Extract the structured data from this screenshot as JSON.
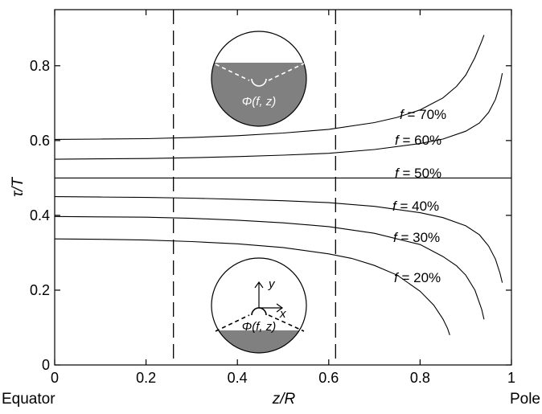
{
  "chart_data": {
    "type": "line",
    "xlabel": "z/R",
    "ylabel": "τ/T",
    "xlim": [
      0,
      1
    ],
    "ylim": [
      0,
      0.95
    ],
    "x_ticks": [
      "0",
      "0.2",
      "0.4",
      "0.6",
      "0.8",
      "1"
    ],
    "y_ticks": [
      "0",
      "0.2",
      "0.4",
      "0.6",
      "0.8"
    ],
    "x_end_labels": {
      "left": "Equator",
      "right": "Pole"
    },
    "vertical_lines": [
      0.26,
      0.615
    ],
    "series": [
      {
        "name": "f = 70%",
        "x": [
          0,
          0.1,
          0.2,
          0.3,
          0.4,
          0.5,
          0.6,
          0.7,
          0.75,
          0.8,
          0.85,
          0.88,
          0.9,
          0.92,
          0.935,
          0.94
        ],
        "y": [
          0.603,
          0.604,
          0.605,
          0.608,
          0.613,
          0.62,
          0.63,
          0.648,
          0.662,
          0.682,
          0.714,
          0.745,
          0.775,
          0.822,
          0.866,
          0.882
        ]
      },
      {
        "name": "f = 60%",
        "x": [
          0,
          0.1,
          0.2,
          0.3,
          0.4,
          0.5,
          0.6,
          0.7,
          0.8,
          0.85,
          0.9,
          0.93,
          0.95,
          0.965,
          0.975,
          0.98
        ],
        "y": [
          0.55,
          0.551,
          0.552,
          0.554,
          0.557,
          0.561,
          0.566,
          0.576,
          0.592,
          0.604,
          0.625,
          0.647,
          0.675,
          0.71,
          0.75,
          0.78
        ]
      },
      {
        "name": "f = 50%",
        "x": [
          0,
          1
        ],
        "y": [
          0.5,
          0.5
        ]
      },
      {
        "name": "f = 40%",
        "x": [
          0,
          0.1,
          0.2,
          0.3,
          0.4,
          0.5,
          0.6,
          0.7,
          0.8,
          0.85,
          0.9,
          0.93,
          0.95,
          0.965,
          0.975,
          0.98
        ],
        "y": [
          0.45,
          0.449,
          0.448,
          0.446,
          0.443,
          0.439,
          0.434,
          0.424,
          0.407,
          0.394,
          0.372,
          0.348,
          0.318,
          0.283,
          0.245,
          0.22
        ]
      },
      {
        "name": "f = 30%",
        "x": [
          0,
          0.1,
          0.2,
          0.3,
          0.4,
          0.5,
          0.6,
          0.7,
          0.8,
          0.85,
          0.88,
          0.9,
          0.92,
          0.935,
          0.94
        ],
        "y": [
          0.397,
          0.396,
          0.395,
          0.392,
          0.387,
          0.38,
          0.37,
          0.352,
          0.322,
          0.29,
          0.265,
          0.24,
          0.2,
          0.148,
          0.122
        ]
      },
      {
        "name": "f = 20%",
        "x": [
          0,
          0.1,
          0.2,
          0.3,
          0.4,
          0.5,
          0.6,
          0.65,
          0.7,
          0.75,
          0.8,
          0.83,
          0.85,
          0.86,
          0.865
        ],
        "y": [
          0.337,
          0.336,
          0.334,
          0.33,
          0.324,
          0.314,
          0.297,
          0.285,
          0.266,
          0.24,
          0.197,
          0.16,
          0.123,
          0.098,
          0.08
        ]
      }
    ],
    "series_label_text": {
      "f70": {
        "var": "f",
        "rest": " = 70%"
      },
      "f60": {
        "var": "f",
        "rest": " = 60%"
      },
      "f50": {
        "var": "f",
        "rest": " = 50%"
      },
      "f40": {
        "var": "f",
        "rest": " = 40%"
      },
      "f30": {
        "var": "f",
        "rest": " = 30%"
      },
      "f20": {
        "var": "f",
        "rest": " = 20%"
      }
    },
    "insets": {
      "top": {
        "label": "Φ(f, z)",
        "fill_color": "#808080"
      },
      "bottom": {
        "label": "Φ(f, z)",
        "axis_x": "x",
        "axis_y": "y",
        "fill_color": "#808080"
      }
    }
  }
}
